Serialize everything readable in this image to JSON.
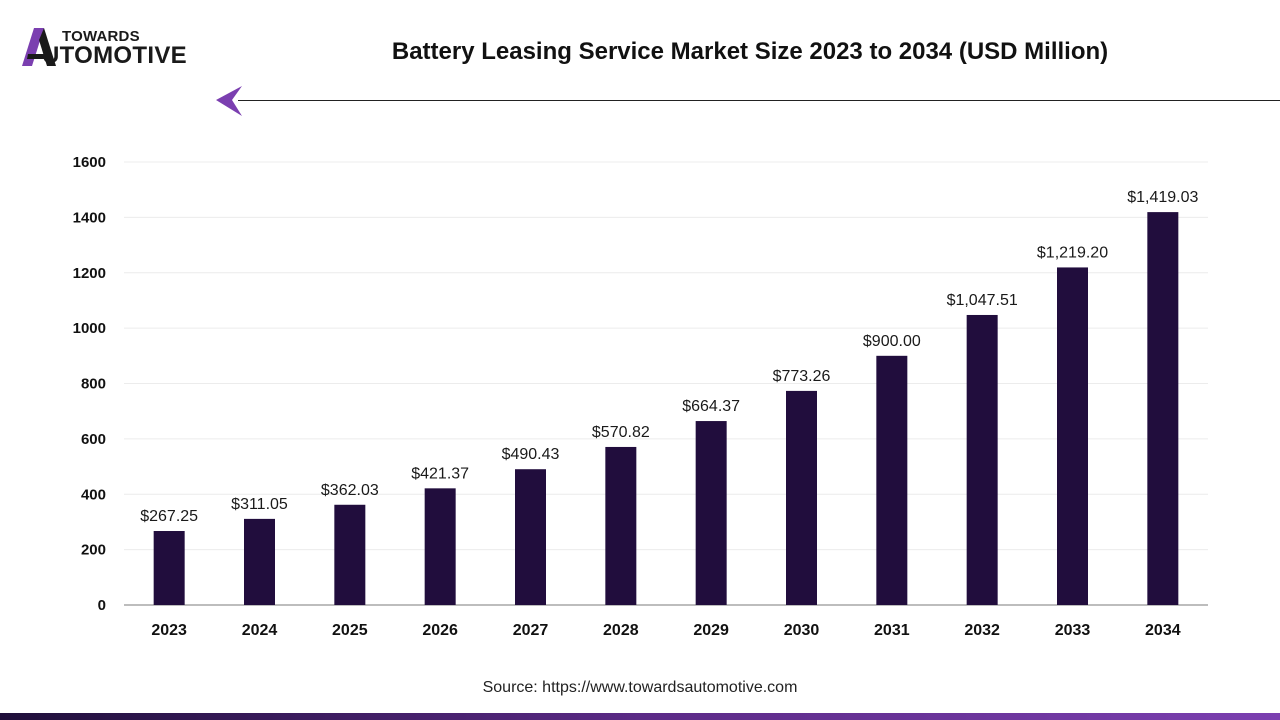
{
  "brand": {
    "logo_top": "TOWARDS",
    "logo_main": "UTOMOTIVE",
    "accent_color": "#7b3fb0"
  },
  "header": {
    "title": "Battery Leasing Service Market Size 2023 to 2034 (USD Million)"
  },
  "chart_data": {
    "type": "bar",
    "title": "Battery Leasing Service Market Size 2023 to 2034 (USD Million)",
    "xlabel": "",
    "ylabel": "",
    "categories": [
      "2023",
      "2024",
      "2025",
      "2026",
      "2027",
      "2028",
      "2029",
      "2030",
      "2031",
      "2032",
      "2033",
      "2034"
    ],
    "values": [
      267.25,
      311.05,
      362.03,
      421.37,
      490.43,
      570.82,
      664.37,
      773.26,
      900.0,
      1047.51,
      1219.2,
      1419.03
    ],
    "value_labels": [
      "$267.25",
      "$311.05",
      "$362.03",
      "$421.37",
      "$490.43",
      "$570.82",
      "$664.37",
      "$773.26",
      "$900.00",
      "$1,047.51",
      "$1,219.20",
      "$1,419.03"
    ],
    "yticks": [
      0,
      200,
      400,
      600,
      800,
      1000,
      1200,
      1400,
      1600
    ],
    "ylim": [
      0,
      1600
    ],
    "grid": true,
    "bar_color": "#210d3d"
  },
  "footer": {
    "source": "Source: https://www.towardsautomotive.com"
  }
}
